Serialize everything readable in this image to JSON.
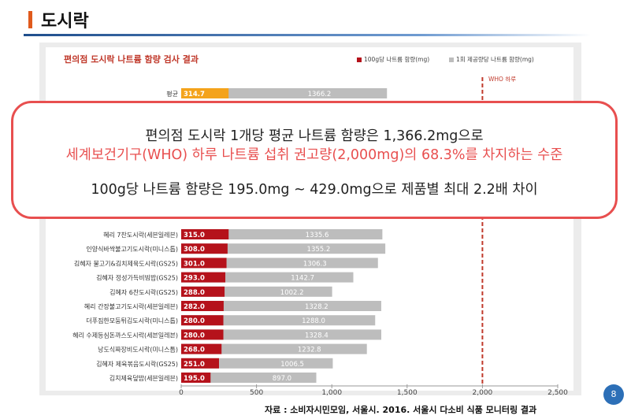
{
  "slide": {
    "title": "도시락",
    "source": "자료 : 소비자시민모임, 서울시. 2016. 서울시 다소비 식품 모니터링 결과",
    "page_number": "8"
  },
  "callout": {
    "line1": "편의점 도시락 1개당 평균 나트륨 함량은 1,366.2mg으로",
    "line2": "세계보건기구(WHO) 하루 나트륨 섭취 권고량(2,000mg)의 68.3%를 차지하는 수준",
    "line3": "100g당 나트륨 함량은 195.0mg ~ 429.0mg으로 제품별 최대 2.2배 차이"
  },
  "colors": {
    "accent_red": "#e84f4f",
    "bar_red": "#b5121b",
    "bar_gray": "#bdbdbd",
    "avg_orange": "#f4a31b",
    "title_blue": "#1f4e8c"
  },
  "chart_data": {
    "type": "bar",
    "orientation": "horizontal",
    "title": "편의점 도시락 나트륨 함량 검사 결과",
    "legend": [
      "100g당 나트륨 함량(mg)",
      "1회 제공량당 나트륨 함량(mg)"
    ],
    "reference_line": {
      "value": 2000,
      "label": "WHO 하루"
    },
    "xlim": [
      0,
      2500
    ],
    "xticks": [
      0,
      500,
      1000,
      1500,
      2000,
      2500
    ],
    "xtick_labels": [
      "0",
      "500",
      "1,000",
      "1,500",
      "2,000",
      "2,500"
    ],
    "grid": false,
    "average": {
      "label": "평균",
      "per100g": 314.7,
      "per100g_label": "314.7",
      "perServing": 1366.2,
      "perServing_label": "1366.2"
    },
    "rows": [
      {
        "label": "혜리 7찬도시락(세븐일레븐)",
        "per100g": 315.0,
        "per100g_label": "315.0",
        "perServing": 1335.6,
        "perServing_label": "1335.6"
      },
      {
        "label": "인양식바싹불고기도시락(미니스톱)",
        "per100g": 308.0,
        "per100g_label": "308.0",
        "perServing": 1355.2,
        "perServing_label": "1355.2"
      },
      {
        "label": "김혜자 불고기&김치제육도시락(GS25)",
        "per100g": 301.0,
        "per100g_label": "301.0",
        "perServing": 1306.3,
        "perServing_label": "1306.3"
      },
      {
        "label": "김혜자 정성가득비빔밥(GS25)",
        "per100g": 293.0,
        "per100g_label": "293.0",
        "perServing": 1142.7,
        "perServing_label": "1142.7"
      },
      {
        "label": "김혜자 6찬도시락(GS25)",
        "per100g": 288.0,
        "per100g_label": "288.0",
        "perServing": 1002.2,
        "perServing_label": "1002.2"
      },
      {
        "label": "혜리 간장불고기도시락(세븐일레븐)",
        "per100g": 282.0,
        "per100g_label": "282.0",
        "perServing": 1328.2,
        "perServing_label": "1328.2"
      },
      {
        "label": "더푸짐한모둠튀김도시락(미니스톱)",
        "per100g": 280.0,
        "per100g_label": "280.0",
        "perServing": 1288.0,
        "perServing_label": "1288.0"
      },
      {
        "label": "혜리 수제등심돈까스도시락(세븐일레븐)",
        "per100g": 280.0,
        "per100g_label": "280.0",
        "perServing": 1328.4,
        "perServing_label": "1328.4"
      },
      {
        "label": "낭도식짜장비도시락(미니스톱)",
        "per100g": 268.0,
        "per100g_label": "268.0",
        "perServing": 1232.8,
        "perServing_label": "1232.8"
      },
      {
        "label": "김혜자 제육볶음도시락(GS25)",
        "per100g": 251.0,
        "per100g_label": "251.0",
        "perServing": 1006.5,
        "perServing_label": "1006.5"
      },
      {
        "label": "김치제육덮밥(세븐일레븐)",
        "per100g": 195.0,
        "per100g_label": "195.0",
        "perServing": 897.0,
        "perServing_label": "897.0"
      }
    ]
  }
}
